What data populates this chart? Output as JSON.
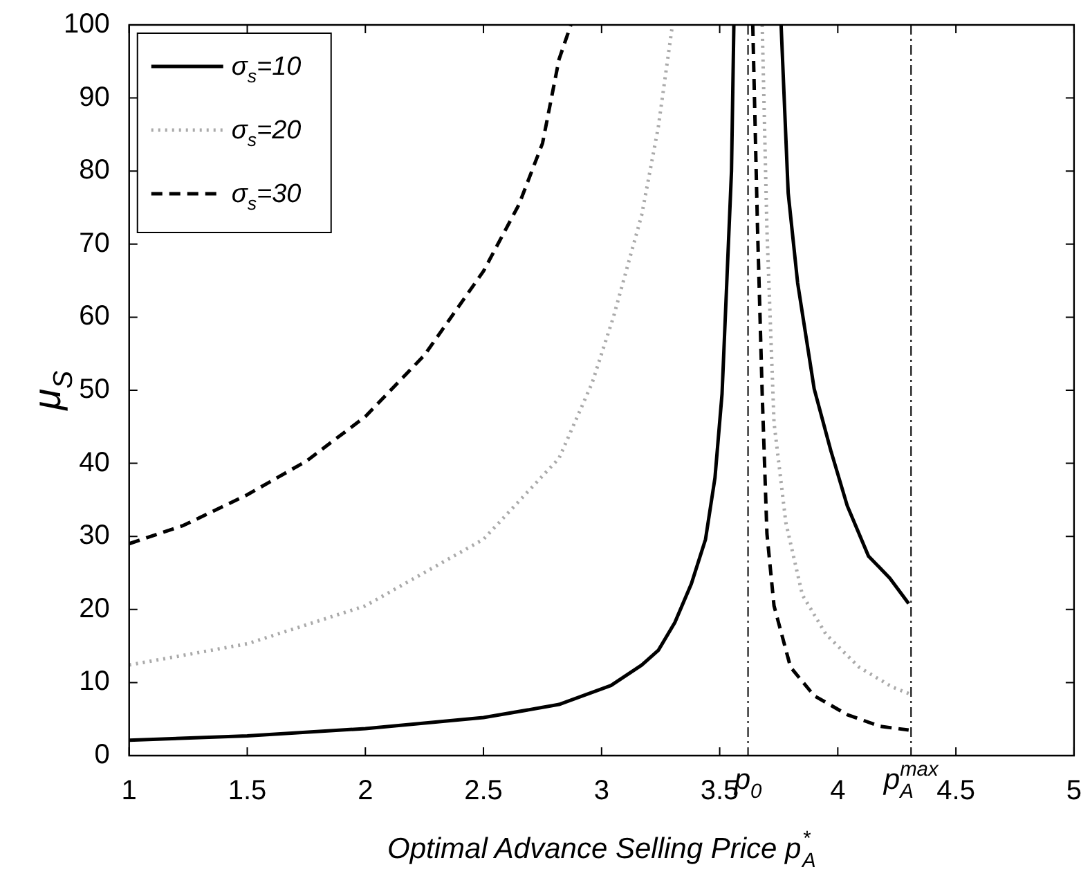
{
  "chart_data": {
    "type": "line",
    "xlabel": "Optimal Advance Selling Price p$_{A}$$^{*}$",
    "ylabel": "μ$_{S}$",
    "xlim": [
      1,
      5
    ],
    "xticks": [
      1,
      1.5,
      2,
      2.5,
      3,
      3.5,
      4,
      4.5,
      5
    ],
    "ylim": [
      0,
      100
    ],
    "yticks": [
      0,
      10,
      20,
      30,
      40,
      50,
      60,
      70,
      80,
      90,
      100
    ],
    "grid": false,
    "legend": "top left",
    "marker": "none",
    "ref_lines": [
      {
        "axis": "x",
        "value": 3.62,
        "label": "p$_{0}$",
        "line_style": "dashed",
        "color": "#000000"
      },
      {
        "axis": "x",
        "value": 4.31,
        "label": "p$_{A}$$^{max}$",
        "line_style": "dashed",
        "color": "#000000"
      }
    ],
    "series": [
      {
        "name": "σ$_{s}$=10",
        "color": "#000000",
        "line_style": "solid",
        "x": [
          1,
          1.5,
          2,
          2.5,
          2.75,
          2.82,
          3.04,
          3.17,
          3.24,
          3.31,
          3.38,
          3.44,
          3.48,
          3.51,
          3.53,
          3.55,
          3.56,
          3.66,
          3.76,
          3.79,
          3.83,
          3.9,
          3.97,
          4.04,
          4.13,
          4.22,
          4.3
        ],
        "values": [
          2.1,
          2.7,
          3.7,
          5.2,
          6.6,
          7.0,
          9.6,
          12.4,
          14.4,
          18.2,
          23.5,
          29.6,
          38,
          49.5,
          64.7,
          80,
          100,
          null,
          100,
          77,
          64.7,
          50.2,
          41.8,
          34.2,
          27.3,
          24.3,
          20.8
        ]
      },
      {
        "name": "σ$_{s}$=20",
        "color": "#aaaaaa",
        "line_style": "dotted",
        "x": [
          1,
          1.5,
          2,
          2.5,
          2.82,
          2.96,
          3.05,
          3.17,
          3.24,
          3.3,
          3.5,
          3.68,
          3.7,
          3.73,
          3.78,
          3.85,
          3.95,
          4.09,
          4.23,
          4.3
        ],
        "values": [
          12.4,
          15.3,
          20.5,
          29.6,
          40.7,
          51,
          60,
          74,
          86,
          100,
          null,
          100,
          72,
          45.6,
          31.9,
          22,
          16.6,
          12.1,
          9.4,
          8.5
        ]
      },
      {
        "name": "σ$_{s}$=30",
        "color": "#000000",
        "line_style": "dashed",
        "x": [
          1,
          1.23,
          1.5,
          1.75,
          2,
          2.25,
          2.5,
          2.65,
          2.75,
          2.82,
          2.87,
          3.3,
          3.64,
          3.66,
          3.68,
          3.7,
          3.73,
          3.8,
          3.9,
          4.04,
          4.18,
          4.3
        ],
        "values": [
          29,
          31.5,
          35.7,
          40.3,
          46.4,
          54.8,
          66.3,
          75.4,
          83.8,
          95.3,
          100,
          null,
          100,
          72.4,
          49.5,
          30.4,
          20.5,
          12.1,
          8.2,
          5.6,
          4.0,
          3.5
        ]
      }
    ]
  }
}
